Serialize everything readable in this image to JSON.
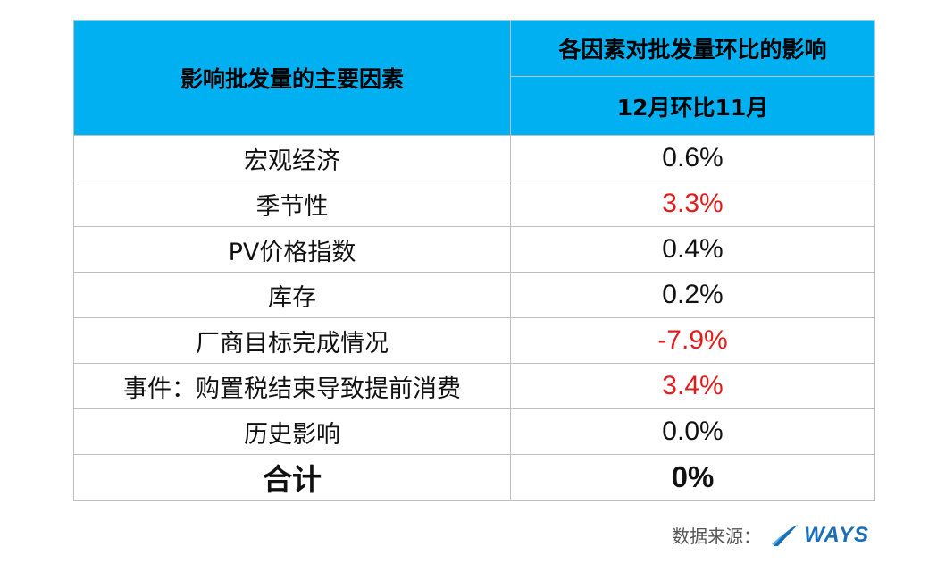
{
  "table": {
    "header": {
      "factor_label": "影响批发量的主要因素",
      "impact_label": "各因素对批发量环比的影响",
      "period_label": "12月环比11月"
    },
    "rows": [
      {
        "factor": "宏观经济",
        "value": "0.6%",
        "highlight": false
      },
      {
        "factor": "季节性",
        "value": "3.3%",
        "highlight": true
      },
      {
        "factor": "PV价格指数",
        "value": "0.4%",
        "highlight": false
      },
      {
        "factor": "库存",
        "value": "0.2%",
        "highlight": false
      },
      {
        "factor": "厂商目标完成情况",
        "value": "-7.9%",
        "highlight": true
      },
      {
        "factor": "事件：购置税结束导致提前消费",
        "value": "3.4%",
        "highlight": true
      },
      {
        "factor": "历史影响",
        "value": "0.0%",
        "highlight": false
      }
    ],
    "total": {
      "label": "合计",
      "value": "0%"
    }
  },
  "source": {
    "label": "数据来源：",
    "logo_text": "WAYS",
    "logo_icon": "ways-swoosh-icon"
  },
  "colors": {
    "header_bg": "#00b0f0",
    "highlight_text": "#e21b1b",
    "border": "#bfbfbf",
    "logo": "#1a6fb8"
  }
}
